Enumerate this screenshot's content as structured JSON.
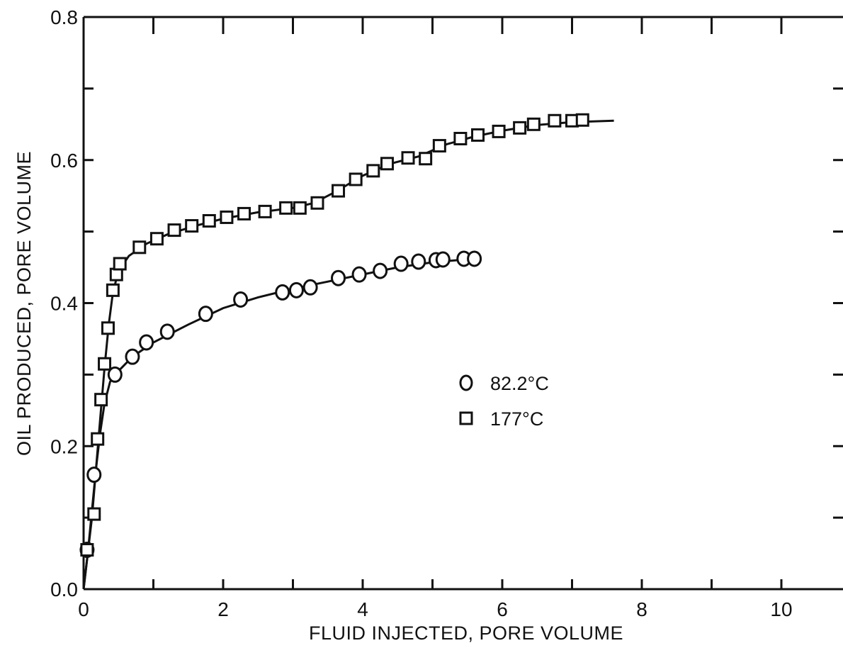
{
  "chart_data": {
    "type": "scatter",
    "xlabel": "FLUID INJECTED,   PORE VOLUME",
    "ylabel": "OIL PRODUCED,   PORE VOLUME",
    "xlim": [
      0,
      11
    ],
    "ylim": [
      0,
      0.8
    ],
    "x_ticks": [
      0,
      1,
      2,
      3,
      4,
      5,
      6,
      7,
      8,
      9,
      10
    ],
    "x_tick_labels": [
      "0",
      "2",
      "4",
      "6",
      "8",
      "10"
    ],
    "x_tick_label_values": [
      0,
      2,
      4,
      6,
      8,
      10
    ],
    "y_ticks": [
      0,
      0.1,
      0.2,
      0.3,
      0.4,
      0.5,
      0.6,
      0.7,
      0.8
    ],
    "y_tick_labels": [
      "0.0",
      "0.2",
      "0.4",
      "0.6",
      "0.8"
    ],
    "y_tick_label_values": [
      0,
      0.2,
      0.4,
      0.6,
      0.8
    ],
    "grid": false,
    "legend_position": "center-right",
    "series": [
      {
        "name": "82.2°C",
        "marker": "circle",
        "points": [
          [
            0.05,
            0.055
          ],
          [
            0.15,
            0.16
          ],
          [
            0.45,
            0.3
          ],
          [
            0.7,
            0.325
          ],
          [
            0.9,
            0.345
          ],
          [
            1.2,
            0.36
          ],
          [
            1.75,
            0.385
          ],
          [
            2.25,
            0.405
          ],
          [
            2.85,
            0.415
          ],
          [
            3.05,
            0.418
          ],
          [
            3.25,
            0.422
          ],
          [
            3.65,
            0.435
          ],
          [
            3.95,
            0.44
          ],
          [
            4.25,
            0.445
          ],
          [
            4.55,
            0.455
          ],
          [
            4.8,
            0.458
          ],
          [
            5.05,
            0.46
          ],
          [
            5.15,
            0.461
          ],
          [
            5.45,
            0.462
          ],
          [
            5.6,
            0.462
          ]
        ],
        "curve": [
          [
            0.0,
            0.0
          ],
          [
            0.06,
            0.05
          ],
          [
            0.12,
            0.11
          ],
          [
            0.18,
            0.17
          ],
          [
            0.24,
            0.22
          ],
          [
            0.3,
            0.26
          ],
          [
            0.38,
            0.29
          ],
          [
            0.5,
            0.305
          ],
          [
            0.7,
            0.325
          ],
          [
            1.0,
            0.345
          ],
          [
            1.5,
            0.37
          ],
          [
            2.0,
            0.393
          ],
          [
            2.5,
            0.408
          ],
          [
            3.0,
            0.42
          ],
          [
            3.5,
            0.43
          ],
          [
            4.0,
            0.44
          ],
          [
            4.5,
            0.45
          ],
          [
            5.0,
            0.457
          ],
          [
            5.6,
            0.462
          ]
        ]
      },
      {
        "name": "177°C",
        "marker": "square",
        "points": [
          [
            0.05,
            0.055
          ],
          [
            0.15,
            0.105
          ],
          [
            0.2,
            0.21
          ],
          [
            0.25,
            0.265
          ],
          [
            0.3,
            0.315
          ],
          [
            0.35,
            0.365
          ],
          [
            0.42,
            0.418
          ],
          [
            0.47,
            0.44
          ],
          [
            0.52,
            0.455
          ],
          [
            0.8,
            0.478
          ],
          [
            1.05,
            0.49
          ],
          [
            1.3,
            0.502
          ],
          [
            1.55,
            0.508
          ],
          [
            1.8,
            0.515
          ],
          [
            2.05,
            0.52
          ],
          [
            2.3,
            0.525
          ],
          [
            2.6,
            0.528
          ],
          [
            2.9,
            0.533
          ],
          [
            3.1,
            0.533
          ],
          [
            3.35,
            0.54
          ],
          [
            3.65,
            0.557
          ],
          [
            3.9,
            0.573
          ],
          [
            4.15,
            0.585
          ],
          [
            4.35,
            0.595
          ],
          [
            4.65,
            0.603
          ],
          [
            4.9,
            0.602
          ],
          [
            5.1,
            0.62
          ],
          [
            5.4,
            0.63
          ],
          [
            5.65,
            0.635
          ],
          [
            5.95,
            0.64
          ],
          [
            6.25,
            0.645
          ],
          [
            6.45,
            0.65
          ],
          [
            6.75,
            0.655
          ],
          [
            7.0,
            0.655
          ],
          [
            7.15,
            0.656
          ]
        ],
        "curve": [
          [
            0.0,
            0.0
          ],
          [
            0.06,
            0.05
          ],
          [
            0.12,
            0.1
          ],
          [
            0.18,
            0.17
          ],
          [
            0.24,
            0.24
          ],
          [
            0.3,
            0.31
          ],
          [
            0.36,
            0.37
          ],
          [
            0.42,
            0.415
          ],
          [
            0.5,
            0.445
          ],
          [
            0.65,
            0.466
          ],
          [
            0.9,
            0.483
          ],
          [
            1.2,
            0.496
          ],
          [
            1.6,
            0.508
          ],
          [
            2.0,
            0.518
          ],
          [
            2.5,
            0.527
          ],
          [
            3.0,
            0.533
          ],
          [
            3.3,
            0.54
          ],
          [
            3.6,
            0.555
          ],
          [
            4.0,
            0.578
          ],
          [
            4.4,
            0.595
          ],
          [
            4.8,
            0.605
          ],
          [
            5.2,
            0.622
          ],
          [
            5.6,
            0.633
          ],
          [
            6.0,
            0.641
          ],
          [
            6.5,
            0.649
          ],
          [
            7.0,
            0.653
          ],
          [
            7.6,
            0.655
          ]
        ]
      }
    ],
    "legend": [
      {
        "marker": "circle",
        "label": "82.2°C"
      },
      {
        "marker": "square",
        "label": "177°C"
      }
    ]
  }
}
